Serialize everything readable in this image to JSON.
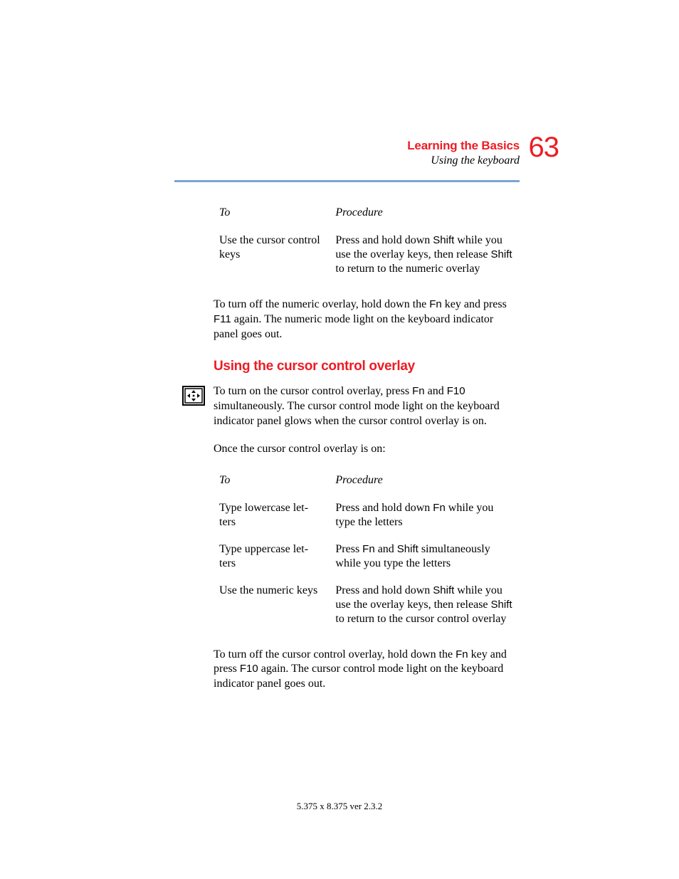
{
  "colors": {
    "accent_red": "#ed1c24",
    "rule_blue": "#7aa5d6",
    "text": "#000000",
    "background": "#ffffff"
  },
  "typography": {
    "body_font": "Times New Roman",
    "heading_font": "Arial",
    "body_size_pt": 12,
    "heading_size_pt": 14,
    "page_number_size_pt": 30
  },
  "header": {
    "chapter": "Learning the Basics",
    "section": "Using the keyboard",
    "page_number": "63"
  },
  "table1": {
    "type": "table",
    "columns": [
      "To",
      "Procedure"
    ],
    "rows": [
      {
        "to": "Use the cursor control keys",
        "procedure_html": "Press and hold down <span class=\"key\">Shift</span> while you use the overlay keys, then release <span class=\"key\">Shift</span> to return to the numeric overlay"
      }
    ]
  },
  "para_after_table1_html": "To turn off the numeric overlay, hold down the <span class=\"key\">Fn</span> key and press <span class=\"key\">F11</span> again. The numeric mode light on the keyboard indicator panel goes out.",
  "subhead": "Using the cursor control overlay",
  "margin_icon_name": "cursor-control-icon",
  "para_after_subhead_html": "To turn on the cursor control overlay, press <span class=\"key\">Fn</span> and <span class=\"key\">F10</span> simultaneously. The cursor control mode light on the keyboard indicator panel glows when the cursor control overlay is on.",
  "para_once_on": "Once the cursor control overlay is on:",
  "table2": {
    "type": "table",
    "columns": [
      "To",
      "Procedure"
    ],
    "rows": [
      {
        "to": "Type lowercase let-\nters",
        "procedure_html": "Press and hold down <span class=\"key\">Fn</span> while you type the letters"
      },
      {
        "to": "Type uppercase let-\nters",
        "procedure_html": "Press <span class=\"key\">Fn</span> and <span class=\"key\">Shift</span> simultaneously while you type the letters"
      },
      {
        "to": "Use the numeric keys",
        "procedure_html": "Press and hold down <span class=\"key\">Shift</span> while you use the overlay keys, then release <span class=\"key\">Shift</span> to return to the cursor control overlay"
      }
    ]
  },
  "para_after_table2_html": "To turn off the cursor control overlay, hold down the <span class=\"key\">Fn</span> key and press <span class=\"key\">F10</span> again. The cursor control mode light on the keyboard indicator panel goes out.",
  "footer": "5.375 x 8.375 ver 2.3.2"
}
